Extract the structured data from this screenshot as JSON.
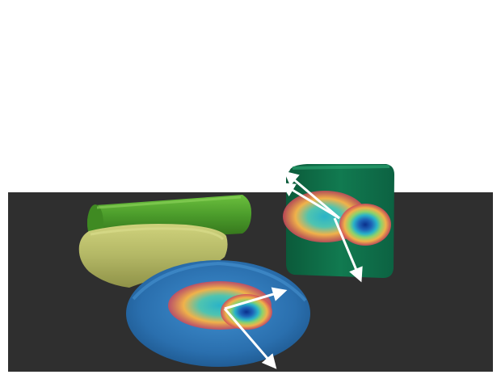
{
  "scene": {
    "background_color": "#ffffff",
    "floor_color": "#2f2f2f",
    "objects": [
      {
        "name": "green-cylinder",
        "color": "#4a9a2a"
      },
      {
        "name": "yellow-soft-block",
        "color": "#b9be6a"
      },
      {
        "name": "blue-torus",
        "color": "#2f73b0"
      },
      {
        "name": "green-box",
        "color": "#0f6b46"
      }
    ],
    "heatmap_colors": [
      "#d04a5a",
      "#f0b24a",
      "#8ed26a",
      "#2ab3c8",
      "#1e64b8",
      "#0a2f8c"
    ],
    "arrow_color": "#ffffff"
  }
}
